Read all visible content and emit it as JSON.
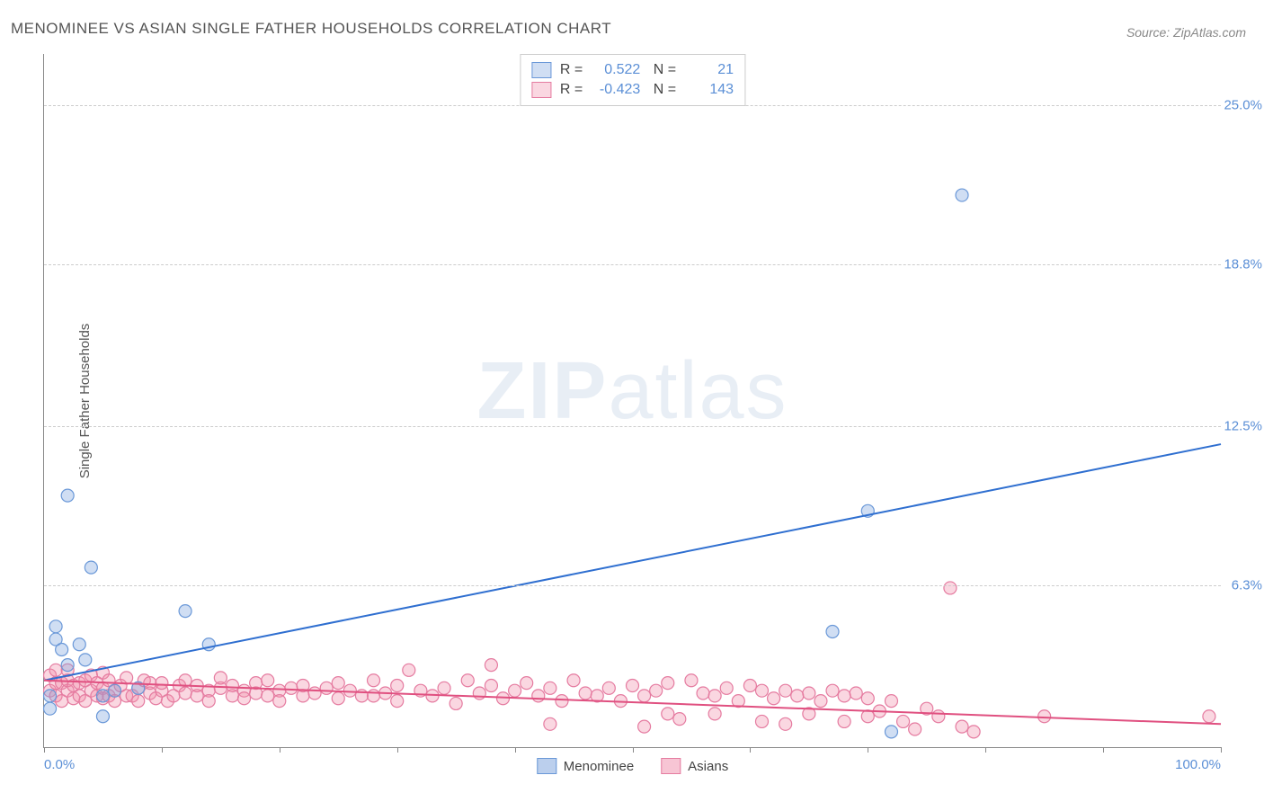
{
  "title": "MENOMINEE VS ASIAN SINGLE FATHER HOUSEHOLDS CORRELATION CHART",
  "source": "Source: ZipAtlas.com",
  "watermark": {
    "part1": "ZIP",
    "part2": "atlas"
  },
  "y_axis_label": "Single Father Households",
  "chart": {
    "type": "scatter",
    "xlim": [
      0,
      100
    ],
    "ylim": [
      0,
      27
    ],
    "y_ticks": [
      {
        "value": 6.3,
        "label": "6.3%"
      },
      {
        "value": 12.5,
        "label": "12.5%"
      },
      {
        "value": 18.8,
        "label": "18.8%"
      },
      {
        "value": 25.0,
        "label": "25.0%"
      }
    ],
    "x_tick_positions": [
      0,
      10,
      20,
      30,
      40,
      50,
      60,
      70,
      80,
      90,
      100
    ],
    "x_labels": [
      {
        "value": 0,
        "label": "0.0%",
        "align": "left"
      },
      {
        "value": 100,
        "label": "100.0%",
        "align": "right"
      }
    ],
    "background_color": "#ffffff",
    "grid_color": "#cccccc",
    "axis_color": "#888888",
    "marker_radius": 7,
    "marker_stroke_width": 1.2,
    "line_width": 2,
    "series": [
      {
        "name": "Menominee",
        "color_fill": "rgba(120,160,220,0.35)",
        "color_stroke": "#6a98d8",
        "line_color": "#2f6fd0",
        "R": "0.522",
        "N": "21",
        "trend": {
          "x1": 0,
          "y1": 2.6,
          "x2": 100,
          "y2": 11.8
        },
        "points": [
          [
            0.5,
            2.0
          ],
          [
            0.5,
            1.5
          ],
          [
            1,
            4.7
          ],
          [
            1,
            4.2
          ],
          [
            1.5,
            3.8
          ],
          [
            2,
            9.8
          ],
          [
            2,
            3.2
          ],
          [
            3,
            4.0
          ],
          [
            3.5,
            3.4
          ],
          [
            4,
            7.0
          ],
          [
            5,
            2.0
          ],
          [
            5,
            1.2
          ],
          [
            6,
            2.2
          ],
          [
            8,
            2.3
          ],
          [
            12,
            5.3
          ],
          [
            14,
            4.0
          ],
          [
            67,
            4.5
          ],
          [
            70,
            9.2
          ],
          [
            72,
            0.6
          ],
          [
            78,
            21.5
          ]
        ]
      },
      {
        "name": "Asians",
        "color_fill": "rgba(240,140,170,0.35)",
        "color_stroke": "#e57ba0",
        "line_color": "#e05080",
        "R": "-0.423",
        "N": "143",
        "trend": {
          "x1": 0,
          "y1": 2.6,
          "x2": 100,
          "y2": 0.9
        },
        "points": [
          [
            0.5,
            2.8
          ],
          [
            0.5,
            2.2
          ],
          [
            1,
            2.5
          ],
          [
            1,
            2.0
          ],
          [
            1,
            3.0
          ],
          [
            1.5,
            1.8
          ],
          [
            1.5,
            2.5
          ],
          [
            2,
            2.2
          ],
          [
            2,
            2.6
          ],
          [
            2,
            3.0
          ],
          [
            2.5,
            1.9
          ],
          [
            2.5,
            2.4
          ],
          [
            3,
            2.0
          ],
          [
            3,
            2.5
          ],
          [
            3.5,
            1.8
          ],
          [
            3.5,
            2.6
          ],
          [
            4,
            2.2
          ],
          [
            4,
            2.8
          ],
          [
            4.5,
            2.0
          ],
          [
            4.5,
            2.5
          ],
          [
            5,
            1.9
          ],
          [
            5,
            2.3
          ],
          [
            5,
            2.9
          ],
          [
            5.5,
            2.0
          ],
          [
            5.5,
            2.6
          ],
          [
            6,
            2.2
          ],
          [
            6,
            1.8
          ],
          [
            6.5,
            2.4
          ],
          [
            7,
            2.0
          ],
          [
            7,
            2.7
          ],
          [
            7.5,
            2.0
          ],
          [
            8,
            2.3
          ],
          [
            8,
            1.8
          ],
          [
            8.5,
            2.6
          ],
          [
            9,
            2.1
          ],
          [
            9,
            2.5
          ],
          [
            9.5,
            1.9
          ],
          [
            10,
            2.2
          ],
          [
            10,
            2.5
          ],
          [
            10.5,
            1.8
          ],
          [
            11,
            2.0
          ],
          [
            11.5,
            2.4
          ],
          [
            12,
            2.1
          ],
          [
            12,
            2.6
          ],
          [
            13,
            2.0
          ],
          [
            13,
            2.4
          ],
          [
            14,
            2.2
          ],
          [
            14,
            1.8
          ],
          [
            15,
            2.3
          ],
          [
            15,
            2.7
          ],
          [
            16,
            2.0
          ],
          [
            16,
            2.4
          ],
          [
            17,
            2.2
          ],
          [
            17,
            1.9
          ],
          [
            18,
            2.5
          ],
          [
            18,
            2.1
          ],
          [
            19,
            2.0
          ],
          [
            19,
            2.6
          ],
          [
            20,
            2.2
          ],
          [
            20,
            1.8
          ],
          [
            21,
            2.3
          ],
          [
            22,
            2.0
          ],
          [
            22,
            2.4
          ],
          [
            23,
            2.1
          ],
          [
            24,
            2.3
          ],
          [
            25,
            1.9
          ],
          [
            25,
            2.5
          ],
          [
            26,
            2.2
          ],
          [
            27,
            2.0
          ],
          [
            28,
            2.6
          ],
          [
            28,
            2.0
          ],
          [
            29,
            2.1
          ],
          [
            30,
            2.4
          ],
          [
            30,
            1.8
          ],
          [
            31,
            3.0
          ],
          [
            32,
            2.2
          ],
          [
            33,
            2.0
          ],
          [
            34,
            2.3
          ],
          [
            35,
            1.7
          ],
          [
            36,
            2.6
          ],
          [
            37,
            2.1
          ],
          [
            38,
            2.4
          ],
          [
            38,
            3.2
          ],
          [
            39,
            1.9
          ],
          [
            40,
            2.2
          ],
          [
            41,
            2.5
          ],
          [
            42,
            2.0
          ],
          [
            43,
            0.9
          ],
          [
            43,
            2.3
          ],
          [
            44,
            1.8
          ],
          [
            45,
            2.6
          ],
          [
            46,
            2.1
          ],
          [
            47,
            2.0
          ],
          [
            48,
            2.3
          ],
          [
            49,
            1.8
          ],
          [
            50,
            2.4
          ],
          [
            51,
            0.8
          ],
          [
            51,
            2.0
          ],
          [
            52,
            2.2
          ],
          [
            53,
            1.3
          ],
          [
            53,
            2.5
          ],
          [
            54,
            1.1
          ],
          [
            55,
            2.6
          ],
          [
            56,
            2.1
          ],
          [
            57,
            1.3
          ],
          [
            57,
            2.0
          ],
          [
            58,
            2.3
          ],
          [
            59,
            1.8
          ],
          [
            60,
            2.4
          ],
          [
            61,
            1.0
          ],
          [
            61,
            2.2
          ],
          [
            62,
            1.9
          ],
          [
            63,
            0.9
          ],
          [
            63,
            2.2
          ],
          [
            64,
            2.0
          ],
          [
            65,
            1.3
          ],
          [
            65,
            2.1
          ],
          [
            66,
            1.8
          ],
          [
            67,
            2.2
          ],
          [
            68,
            1.0
          ],
          [
            68,
            2.0
          ],
          [
            69,
            2.1
          ],
          [
            70,
            1.2
          ],
          [
            70,
            1.9
          ],
          [
            71,
            1.4
          ],
          [
            72,
            1.8
          ],
          [
            73,
            1.0
          ],
          [
            74,
            0.7
          ],
          [
            75,
            1.5
          ],
          [
            76,
            1.2
          ],
          [
            77,
            6.2
          ],
          [
            78,
            0.8
          ],
          [
            79,
            0.6
          ],
          [
            85,
            1.2
          ],
          [
            99,
            1.2
          ]
        ]
      }
    ],
    "bottom_legend": [
      {
        "label": "Menominee",
        "fill": "rgba(120,160,220,0.5)",
        "stroke": "#6a98d8"
      },
      {
        "label": "Asians",
        "fill": "rgba(240,140,170,0.5)",
        "stroke": "#e57ba0"
      }
    ]
  }
}
